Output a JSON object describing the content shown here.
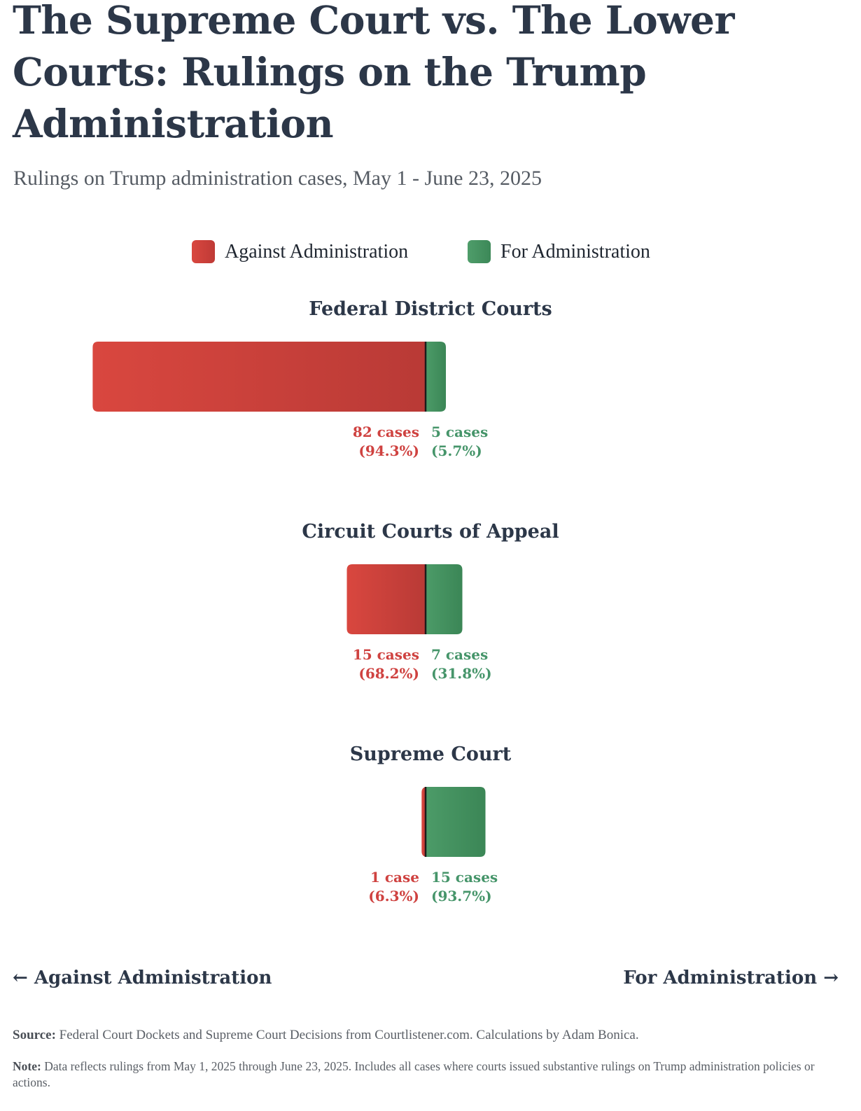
{
  "header": {
    "title": "The Supreme Court vs. The Lower Courts: Rulings on the Trump Administration",
    "subtitle": "Rulings on Trump administration cases, May 1 - June 23, 2025"
  },
  "colors": {
    "against": "#cf4240",
    "for": "#46956a",
    "divider": "#1c1c1c",
    "text": "#2c3748"
  },
  "chart_data": {
    "type": "bar",
    "title": "The Supreme Court vs. The Lower Courts: Rulings on the Trump Administration",
    "subtitle": "Rulings on Trump administration cases, May 1 - June 23, 2025",
    "orientation": "horizontal-diverging",
    "legend": {
      "placement": "top-center",
      "entries": [
        "Against Administration",
        "For Administration"
      ]
    },
    "categories": [
      "Federal District Courts",
      "Circuit Courts of Appeal",
      "Supreme Court"
    ],
    "series": [
      {
        "name": "Against Administration",
        "values": [
          82,
          15,
          1
        ],
        "percents": [
          "94.3%",
          "68.2%",
          "6.3%"
        ],
        "labels": [
          "82 cases",
          "15 cases",
          "1 case"
        ],
        "pct_labels": [
          "(94.3%)",
          "(68.2%)",
          "(6.3%)"
        ]
      },
      {
        "name": "For Administration",
        "values": [
          5,
          7,
          15
        ],
        "percents": [
          "5.7%",
          "31.8%",
          "93.7%"
        ],
        "labels": [
          "5 cases",
          "7 cases",
          "15 cases"
        ],
        "pct_labels": [
          "(5.7%)",
          "(31.8%)",
          "(93.7%)"
        ]
      }
    ],
    "xlabel_left": "← Against Administration",
    "xlabel_right": "For Administration →",
    "grid": false
  },
  "footer": {
    "source_label": "Source:",
    "source_text": " Federal Court Dockets and Supreme Court Decisions from Courtlistener.com. Calculations by Adam Bonica.",
    "note_label": "Note:",
    "note_text": " Data reflects rulings from May 1, 2025 through June 23, 2025. Includes all cases where courts issued substantive rulings on Trump administration policies or actions."
  }
}
